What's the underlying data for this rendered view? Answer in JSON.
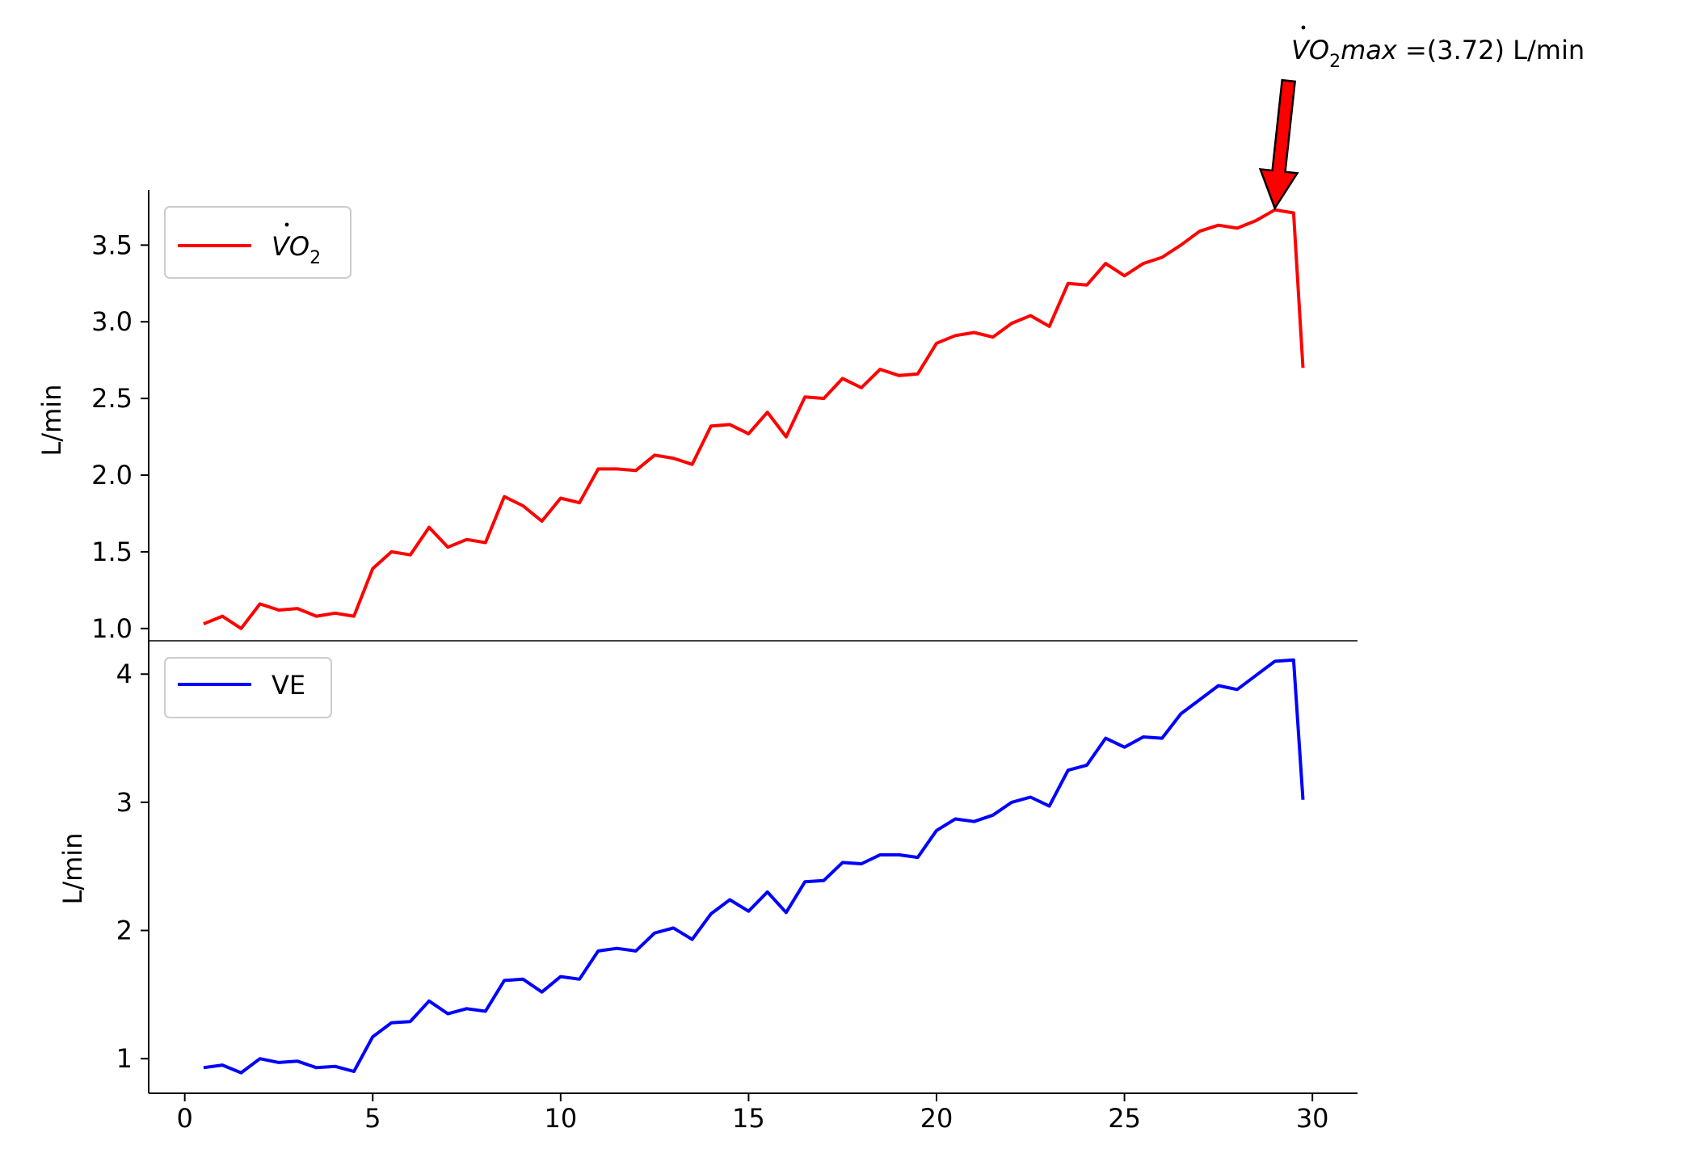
{
  "chart_data": [
    {
      "type": "line",
      "ylabel": "L/min",
      "xlim": [
        -0.96,
        31.2
      ],
      "ylim": [
        0.92,
        3.86
      ],
      "yticks": [
        1.0,
        1.5,
        2.0,
        2.5,
        3.0,
        3.5
      ],
      "ytick_labels": [
        "1.0",
        "1.5",
        "2.0",
        "2.5",
        "3.0",
        "3.5"
      ],
      "legend": {
        "position": "upper-left",
        "entries": [
          {
            "label": "VO",
            "subscript": "2",
            "dot": true,
            "color": "#ff0000"
          }
        ]
      },
      "series": [
        {
          "name": "VO2",
          "color": "#ff0000",
          "x": [
            0.5,
            1.0,
            1.5,
            2.0,
            2.5,
            3.0,
            3.5,
            4.0,
            4.5,
            5.0,
            5.5,
            6.0,
            6.5,
            7.0,
            7.5,
            8.0,
            8.5,
            9.0,
            9.5,
            10.0,
            10.5,
            11.0,
            11.5,
            12.0,
            12.5,
            13.0,
            13.5,
            14.0,
            14.5,
            15.0,
            15.5,
            16.0,
            16.5,
            17.0,
            17.5,
            18.0,
            18.5,
            19.0,
            19.5,
            20.0,
            20.5,
            21.0,
            21.5,
            22.0,
            22.5,
            23.0,
            23.5,
            24.0,
            24.5,
            25.0,
            25.5,
            26.0,
            26.5,
            27.0,
            27.5,
            28.0,
            28.5,
            29.0,
            29.5,
            29.75
          ],
          "values": [
            1.03,
            1.08,
            1.0,
            1.16,
            1.12,
            1.13,
            1.08,
            1.1,
            1.08,
            1.39,
            1.5,
            1.48,
            1.66,
            1.53,
            1.58,
            1.56,
            1.86,
            1.8,
            1.7,
            1.85,
            1.82,
            2.04,
            2.04,
            2.03,
            2.13,
            2.11,
            2.07,
            2.32,
            2.33,
            2.27,
            2.41,
            2.25,
            2.51,
            2.5,
            2.63,
            2.57,
            2.69,
            2.65,
            2.66,
            2.86,
            2.91,
            2.93,
            2.9,
            2.99,
            3.04,
            2.97,
            3.25,
            3.24,
            3.38,
            3.3,
            3.38,
            3.42,
            3.5,
            3.59,
            3.63,
            3.61,
            3.66,
            3.73,
            3.71,
            2.7
          ]
        }
      ],
      "annotation": {
        "prefix": "VO",
        "subscript": "2",
        "suffix": "max",
        "value_text": " =(3.72) L/min",
        "x": 29.0,
        "y": 3.72,
        "arrow_color": "#ff0000"
      }
    },
    {
      "type": "line",
      "ylabel": "L/min",
      "xlabel": "",
      "xlim": [
        -0.96,
        31.2
      ],
      "ylim": [
        0.73,
        4.26
      ],
      "yticks": [
        1,
        2,
        3,
        4
      ],
      "ytick_labels": [
        "1",
        "2",
        "3",
        "4"
      ],
      "xticks": [
        0,
        5,
        10,
        15,
        20,
        25,
        30
      ],
      "xtick_labels": [
        "0",
        "5",
        "10",
        "15",
        "20",
        "25",
        "30"
      ],
      "legend": {
        "position": "upper-left",
        "entries": [
          {
            "label": "VE",
            "color": "#0000ff"
          }
        ]
      },
      "series": [
        {
          "name": "VE",
          "color": "#0000ff",
          "x": [
            0.5,
            1.0,
            1.5,
            2.0,
            2.5,
            3.0,
            3.5,
            4.0,
            4.5,
            5.0,
            5.5,
            6.0,
            6.5,
            7.0,
            7.5,
            8.0,
            8.5,
            9.0,
            9.5,
            10.0,
            10.5,
            11.0,
            11.5,
            12.0,
            12.5,
            13.0,
            13.5,
            14.0,
            14.5,
            15.0,
            15.5,
            16.0,
            16.5,
            17.0,
            17.5,
            18.0,
            18.5,
            19.0,
            19.5,
            20.0,
            20.5,
            21.0,
            21.5,
            22.0,
            22.5,
            23.0,
            23.5,
            24.0,
            24.5,
            25.0,
            25.5,
            26.0,
            26.5,
            27.0,
            27.5,
            28.0,
            28.5,
            29.0,
            29.5,
            29.75
          ],
          "values": [
            0.93,
            0.95,
            0.89,
            1.0,
            0.97,
            0.98,
            0.93,
            0.94,
            0.9,
            1.17,
            1.28,
            1.29,
            1.45,
            1.35,
            1.39,
            1.37,
            1.61,
            1.62,
            1.52,
            1.64,
            1.62,
            1.84,
            1.86,
            1.84,
            1.98,
            2.02,
            1.93,
            2.13,
            2.24,
            2.15,
            2.3,
            2.14,
            2.38,
            2.39,
            2.53,
            2.52,
            2.59,
            2.59,
            2.57,
            2.78,
            2.87,
            2.85,
            2.9,
            3.0,
            3.04,
            2.97,
            3.25,
            3.29,
            3.5,
            3.43,
            3.51,
            3.5,
            3.69,
            3.8,
            3.91,
            3.88,
            3.99,
            4.1,
            4.11,
            3.02
          ]
        }
      ]
    }
  ]
}
